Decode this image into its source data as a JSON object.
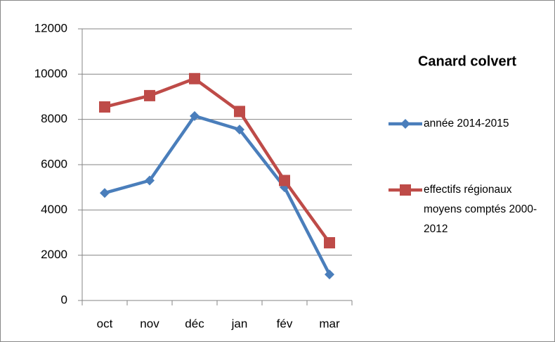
{
  "chart_data": {
    "type": "line",
    "title": "Canard colvert",
    "categories": [
      "oct",
      "nov",
      "déc",
      "jan",
      "fév",
      "mar"
    ],
    "series": [
      {
        "name": "année 2014-2015",
        "color": "#4a7ebb",
        "marker": "diamond",
        "values": [
          4750,
          5300,
          8150,
          7550,
          5000,
          1150
        ]
      },
      {
        "name": "effectifs régionaux moyens comptés 2000-2012",
        "color": "#be4b48",
        "marker": "square",
        "values": [
          8550,
          9050,
          9800,
          8350,
          5300,
          2550
        ]
      }
    ],
    "ylim": [
      0,
      12000
    ],
    "yticks": [
      0,
      2000,
      4000,
      6000,
      8000,
      10000,
      12000
    ],
    "grid": true,
    "legend": "right"
  }
}
